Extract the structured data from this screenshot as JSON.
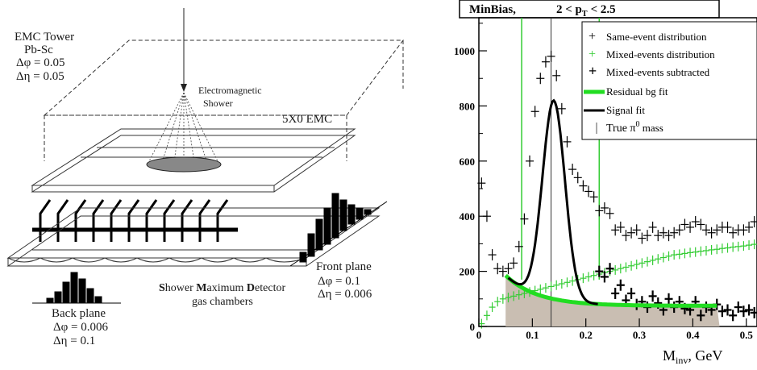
{
  "diagram": {
    "tower_title": "EMC Tower",
    "tower_material": "Pb-Sc",
    "tower_dphi": "Δφ = 0.05",
    "tower_deta": "Δη = 0.05",
    "shower_line1": "Electromagnetic",
    "shower_line2": "Shower",
    "emc_label": "5X0 EMC",
    "front_plane": "Front plane",
    "front_dphi": "Δφ = 0.1",
    "front_deta": "Δη = 0.006",
    "smd_line1_s": "S",
    "smd_line1_a": "hower ",
    "smd_line1_m": "M",
    "smd_line1_b": "aximum ",
    "smd_line1_d": "D",
    "smd_line1_c": "etector",
    "smd_line2": "gas chambers",
    "back_plane": "Back plane",
    "back_dphi": "Δφ = 0.006",
    "back_deta": "Δη = 0.1"
  },
  "chart_data": {
    "type": "scatter",
    "title_left": "MinBias,",
    "title_right": "2 < p",
    "title_sub": "T",
    "title_end": "< 2.5",
    "xlabel_main": "M",
    "xlabel_sub": "inv",
    "xlabel_unit": ", GeV",
    "xlim": [
      0,
      0.52
    ],
    "ylim": [
      0,
      1120
    ],
    "x_ticks": [
      0,
      0.1,
      0.2,
      0.3,
      0.4,
      0.5
    ],
    "x_tick_labels": [
      "0",
      "0.1",
      "0.2",
      "0.3",
      "0.4",
      "0.5"
    ],
    "y_ticks": [
      0,
      200,
      400,
      600,
      800,
      1000
    ],
    "y_tick_labels": [
      "0",
      "200",
      "400",
      "600",
      "800",
      "1000"
    ],
    "legend": {
      "same": "Same-event distribution",
      "mixed": "Mixed-events distribution",
      "subtracted": "Mixed-events subtracted",
      "residual": "Residual bg fit",
      "signal": "Signal fit",
      "true_mass": "True π",
      "true_mass_sup": "0",
      "true_mass_end": " mass"
    },
    "colors": {
      "same": "#000000",
      "mixed": "#33cc33",
      "subtracted": "#000000",
      "residual": "#22dd22",
      "signal": "#000000",
      "fill": "#c9beb2"
    },
    "true_mass": 0.135,
    "vlines": [
      0.08,
      0.225
    ],
    "series": [
      {
        "name": "Same-event distribution",
        "x": [
          0.005,
          0.015,
          0.025,
          0.035,
          0.045,
          0.055,
          0.065,
          0.075,
          0.085,
          0.095,
          0.105,
          0.115,
          0.125,
          0.135,
          0.145,
          0.155,
          0.165,
          0.175,
          0.185,
          0.195,
          0.205,
          0.215,
          0.225,
          0.235,
          0.245,
          0.255,
          0.265,
          0.275,
          0.285,
          0.295,
          0.305,
          0.315,
          0.325,
          0.335,
          0.345,
          0.355,
          0.365,
          0.375,
          0.385,
          0.395,
          0.405,
          0.415,
          0.425,
          0.435,
          0.445,
          0.455,
          0.465,
          0.475,
          0.485,
          0.495,
          0.505,
          0.515
        ],
        "y": [
          520,
          400,
          260,
          210,
          200,
          210,
          230,
          290,
          390,
          600,
          780,
          900,
          960,
          980,
          910,
          790,
          670,
          570,
          540,
          510,
          490,
          470,
          420,
          430,
          410,
          350,
          360,
          330,
          340,
          350,
          320,
          330,
          360,
          330,
          340,
          330,
          340,
          350,
          370,
          360,
          380,
          370,
          350,
          340,
          350,
          360,
          360,
          340,
          350,
          350,
          360,
          380
        ]
      },
      {
        "name": "Mixed-events distribution",
        "x": [
          0.005,
          0.015,
          0.025,
          0.035,
          0.045,
          0.055,
          0.065,
          0.075,
          0.085,
          0.095,
          0.105,
          0.115,
          0.125,
          0.135,
          0.145,
          0.155,
          0.165,
          0.175,
          0.185,
          0.195,
          0.205,
          0.215,
          0.225,
          0.235,
          0.245,
          0.255,
          0.265,
          0.275,
          0.285,
          0.295,
          0.305,
          0.315,
          0.325,
          0.335,
          0.345,
          0.355,
          0.365,
          0.375,
          0.385,
          0.395,
          0.405,
          0.415,
          0.425,
          0.435,
          0.445,
          0.455,
          0.465,
          0.475,
          0.485,
          0.495,
          0.505,
          0.515
        ],
        "y": [
          10,
          40,
          70,
          90,
          100,
          105,
          110,
          115,
          120,
          125,
          130,
          135,
          140,
          145,
          150,
          155,
          160,
          165,
          170,
          175,
          180,
          185,
          190,
          195,
          200,
          205,
          210,
          215,
          220,
          225,
          230,
          235,
          240,
          245,
          250,
          255,
          260,
          262,
          265,
          268,
          270,
          273,
          275,
          278,
          280,
          283,
          285,
          288,
          290,
          292,
          295,
          298
        ]
      },
      {
        "name": "Mixed-events subtracted",
        "x": [
          0.225,
          0.235,
          0.245,
          0.255,
          0.265,
          0.275,
          0.285,
          0.295,
          0.305,
          0.315,
          0.325,
          0.335,
          0.345,
          0.355,
          0.365,
          0.375,
          0.385,
          0.395,
          0.405,
          0.415,
          0.425,
          0.435,
          0.445,
          0.455,
          0.465,
          0.475,
          0.485,
          0.495,
          0.505,
          0.515
        ],
        "y": [
          200,
          180,
          210,
          120,
          150,
          95,
          120,
          80,
          90,
          70,
          110,
          85,
          60,
          100,
          70,
          90,
          65,
          60,
          90,
          40,
          70,
          60,
          80,
          55,
          60,
          40,
          70,
          55,
          60,
          50
        ]
      }
    ]
  }
}
